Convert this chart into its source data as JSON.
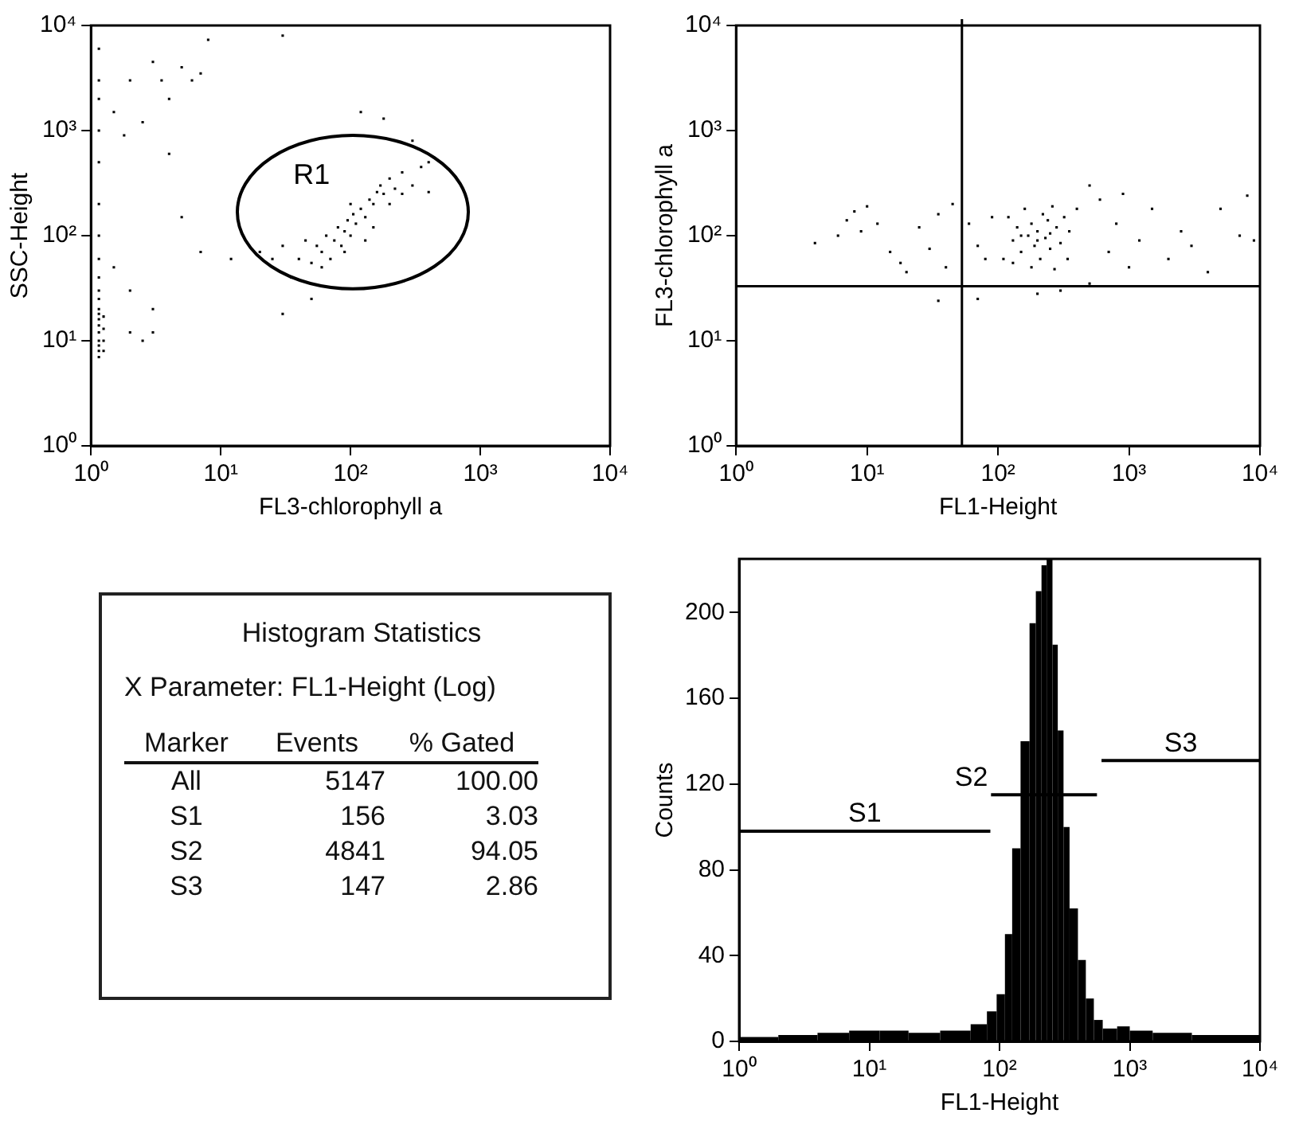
{
  "chart_data": [
    {
      "type": "scatter",
      "xlabel": "FL3-chlorophyll a",
      "ylabel": "SSC-Height",
      "log": "xy",
      "marker": "square",
      "xlim": [
        1,
        10000
      ],
      "ylim": [
        1,
        10000
      ],
      "xticks": [
        {
          "value": 1,
          "label": "10⁰"
        },
        {
          "value": 10,
          "label": "10¹"
        },
        {
          "value": 100,
          "label": "10²"
        },
        {
          "value": 1000,
          "label": "10³"
        },
        {
          "value": 10000,
          "label": "10⁴"
        }
      ],
      "yticks": [
        {
          "value": 1,
          "label": "10⁰"
        },
        {
          "value": 10,
          "label": "10¹"
        },
        {
          "value": 100,
          "label": "10²"
        },
        {
          "value": 1000,
          "label": "10³"
        },
        {
          "value": 10000,
          "label": "10⁴"
        }
      ],
      "annotations": [
        "R1"
      ],
      "series": [
        {
          "color": "#000000",
          "x": [
            40,
            50,
            55,
            60,
            65,
            70,
            75,
            80,
            85,
            90,
            95,
            100,
            105,
            110,
            120,
            130,
            140,
            150,
            160,
            170,
            180,
            200,
            220,
            250,
            130,
            90,
            60,
            45,
            100,
            150,
            200,
            250,
            300,
            350,
            400,
            30,
            25,
            20,
            35,
            30,
            50,
            120,
            180,
            300,
            400,
            1.15,
            1.15,
            1.15,
            1.15,
            1.15,
            1.15,
            1.15,
            1.15,
            1.15,
            1.15,
            1.15,
            1.15,
            1.15,
            1.15,
            1.15,
            1.15,
            1.15,
            1.15,
            1.15,
            1.15,
            1.25,
            1.25,
            1.25,
            1.25,
            1.5,
            1.8,
            2,
            2.5,
            3,
            3.5,
            4,
            5,
            6,
            7,
            8,
            2,
            3,
            2.5,
            5,
            4,
            7,
            1.5,
            2,
            30,
            12,
            3
          ],
          "values": [
            60,
            55,
            80,
            70,
            100,
            60,
            90,
            120,
            80,
            110,
            140,
            100,
            160,
            130,
            180,
            150,
            220,
            200,
            260,
            300,
            250,
            350,
            280,
            400,
            90,
            70,
            50,
            90,
            200,
            120,
            200,
            250,
            300,
            450,
            260,
            80,
            60,
            70,
            40,
            18,
            25,
            1500,
            1300,
            800,
            500,
            7,
            8,
            9,
            10,
            12,
            14,
            16,
            18,
            20,
            25,
            30,
            40,
            60,
            100,
            200,
            500,
            1000,
            2000,
            3000,
            6000,
            8,
            10,
            13,
            17,
            1500,
            900,
            3000,
            1200,
            4500,
            3000,
            2000,
            4000,
            3000,
            3500,
            7300,
            30,
            20,
            10,
            150,
            600,
            70,
            50,
            12,
            8000,
            60,
            12
          ]
        }
      ]
    },
    {
      "type": "scatter",
      "xlabel": "FL1-Height",
      "ylabel": "FL3-chlorophyll a",
      "log": "xy",
      "marker": "square",
      "xlim": [
        1,
        10000
      ],
      "ylim": [
        1,
        10000
      ],
      "xticks": [
        {
          "value": 1,
          "label": "10⁰"
        },
        {
          "value": 10,
          "label": "10¹"
        },
        {
          "value": 100,
          "label": "10²"
        },
        {
          "value": 1000,
          "label": "10³"
        },
        {
          "value": 10000,
          "label": "10⁴"
        }
      ],
      "yticks": [
        {
          "value": 1,
          "label": "10⁰"
        },
        {
          "value": 10,
          "label": "10¹"
        },
        {
          "value": 100,
          "label": "10²"
        },
        {
          "value": 1000,
          "label": "10³"
        },
        {
          "value": 10000,
          "label": "10⁴"
        }
      ],
      "ref_lines": [
        {
          "axis": "x",
          "value": 53
        },
        {
          "axis": "y",
          "value": 33
        }
      ],
      "series": [
        {
          "color": "#000000",
          "x": [
            110,
            120,
            130,
            140,
            150,
            160,
            170,
            180,
            190,
            200,
            210,
            220,
            230,
            240,
            250,
            260,
            280,
            300,
            320,
            340,
            150,
            200,
            250,
            180,
            270,
            130,
            350,
            400,
            4,
            6,
            7,
            8,
            9,
            10,
            12,
            15,
            18,
            20,
            25,
            30,
            35,
            40,
            45,
            60,
            70,
            80,
            90,
            500,
            600,
            700,
            800,
            900,
            1000,
            1200,
            1500,
            2000,
            2500,
            3000,
            4000,
            5000,
            7000,
            8000,
            9000,
            35,
            70,
            200,
            300,
            500
          ],
          "values": [
            60,
            150,
            90,
            120,
            70,
            180,
            100,
            130,
            80,
            110,
            60,
            160,
            95,
            140,
            75,
            190,
            120,
            85,
            150,
            60,
            100,
            90,
            105,
            50,
            48,
            55,
            110,
            180,
            85,
            100,
            140,
            170,
            110,
            190,
            130,
            70,
            55,
            45,
            120,
            75,
            160,
            50,
            200,
            130,
            80,
            60,
            150,
            300,
            220,
            70,
            130,
            250,
            50,
            90,
            180,
            60,
            110,
            80,
            45,
            180,
            100,
            240,
            90,
            24,
            25,
            28,
            30,
            35
          ]
        }
      ]
    },
    {
      "type": "other",
      "title": "Histogram Statistics",
      "subtitle": "X Parameter: FL1-Height (Log)",
      "annotations": [
        "Marker",
        "Events",
        "% Gated",
        "All",
        "5147",
        "100.00",
        "S1",
        "156",
        "3.03",
        "S2",
        "4841",
        "94.05",
        "S3",
        "147",
        "2.86"
      ]
    },
    {
      "type": "histogram",
      "xlabel": "FL1-Height",
      "ylabel": "Counts",
      "log": "x",
      "xlim": [
        1,
        10000
      ],
      "ylim": [
        0,
        225
      ],
      "xticks": [
        {
          "value": 1,
          "label": "10⁰"
        },
        {
          "value": 10,
          "label": "10¹"
        },
        {
          "value": 100,
          "label": "10²"
        },
        {
          "value": 1000,
          "label": "10³"
        },
        {
          "value": 10000,
          "label": "10⁴"
        }
      ],
      "yticks": [
        0,
        40,
        80,
        120,
        160,
        200
      ],
      "series": [
        {
          "color": "#000000",
          "bins": [
            1,
            2,
            4,
            7,
            12,
            20,
            35,
            60,
            80,
            95,
            110,
            125,
            145,
            170,
            190,
            210,
            230,
            255,
            280,
            310,
            345,
            400,
            460,
            530,
            620,
            800,
            1000,
            1500,
            3000,
            10000
          ],
          "values": [
            2,
            3,
            4,
            5,
            5,
            4,
            5,
            8,
            14,
            22,
            50,
            90,
            140,
            195,
            210,
            222,
            225,
            185,
            145,
            100,
            62,
            38,
            20,
            10,
            6,
            7,
            5,
            4,
            3
          ]
        },
        {
          "type": "line",
          "name": "S1",
          "color": "#000000",
          "x": [
            1,
            85
          ],
          "values": [
            98,
            98
          ]
        },
        {
          "type": "line",
          "name": "S2",
          "color": "#000000",
          "x": [
            86,
            560
          ],
          "values": [
            115,
            115
          ]
        },
        {
          "type": "line",
          "name": "S3",
          "color": "#000000",
          "x": [
            607,
            10000
          ],
          "values": [
            131,
            131
          ]
        }
      ]
    }
  ]
}
